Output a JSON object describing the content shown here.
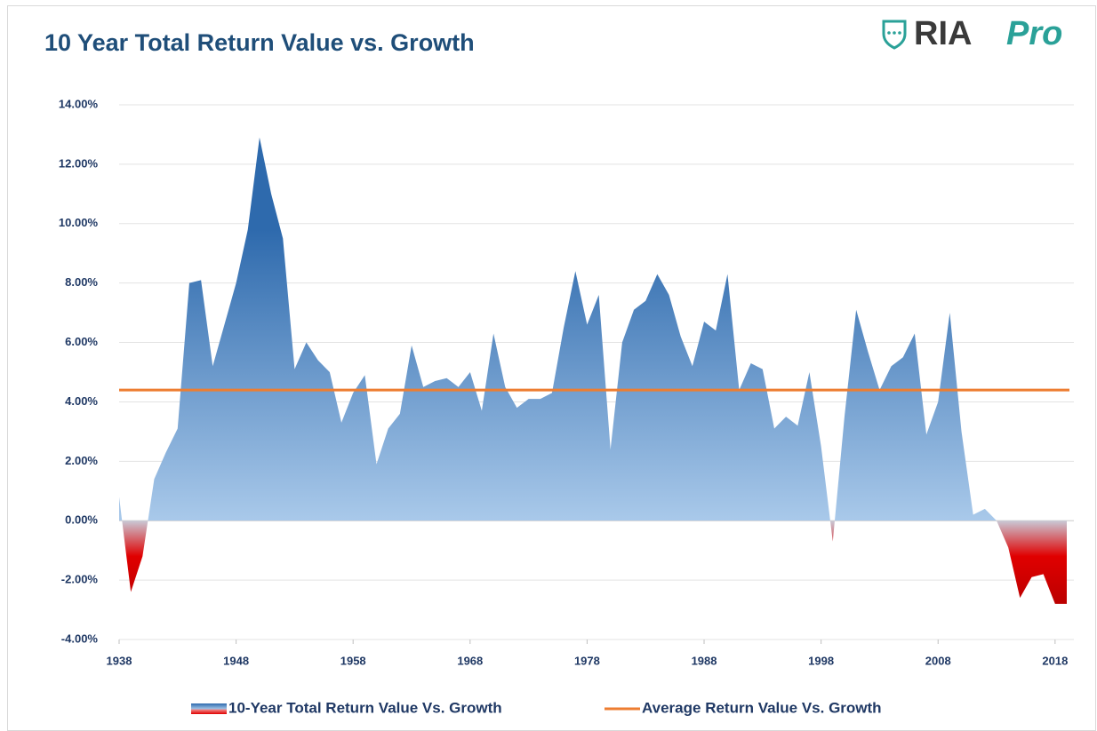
{
  "logo": {
    "text": "RIA",
    "accent": "Pro"
  },
  "chart_data": {
    "type": "area",
    "title": "10 Year Total Return Value vs. Growth",
    "x": [
      1938,
      1939,
      1940,
      1941,
      1942,
      1943,
      1944,
      1945,
      1946,
      1947,
      1948,
      1949,
      1950,
      1951,
      1952,
      1953,
      1954,
      1955,
      1956,
      1957,
      1958,
      1959,
      1960,
      1961,
      1962,
      1963,
      1964,
      1965,
      1966,
      1967,
      1968,
      1969,
      1970,
      1971,
      1972,
      1973,
      1974,
      1975,
      1976,
      1977,
      1978,
      1979,
      1980,
      1981,
      1982,
      1983,
      1984,
      1985,
      1986,
      1987,
      1988,
      1989,
      1990,
      1991,
      1992,
      1993,
      1994,
      1995,
      1996,
      1997,
      1998,
      1999,
      2000,
      2001,
      2002,
      2003,
      2004,
      2005,
      2006,
      2007,
      2008,
      2009,
      2010,
      2011,
      2012,
      2013,
      2014,
      2015,
      2016,
      2017,
      2018,
      2019
    ],
    "series": [
      {
        "name": "10-Year Total Return Value Vs. Growth",
        "color": "#2e6aad",
        "negative_color": "#e00000",
        "values": [
          0.8,
          -2.4,
          -1.2,
          1.4,
          2.3,
          3.1,
          8.0,
          8.1,
          5.2,
          6.6,
          8.0,
          9.8,
          12.9,
          11.0,
          9.5,
          5.1,
          6.0,
          5.4,
          5.0,
          3.3,
          4.3,
          4.9,
          1.9,
          3.1,
          3.6,
          5.9,
          4.5,
          4.7,
          4.8,
          4.5,
          5.0,
          3.7,
          6.3,
          4.5,
          3.8,
          4.1,
          4.1,
          4.3,
          6.5,
          8.4,
          6.6,
          7.6,
          2.4,
          6.0,
          7.1,
          7.4,
          8.3,
          7.6,
          6.2,
          5.2,
          6.7,
          6.4,
          8.3,
          4.4,
          5.3,
          5.1,
          3.1,
          3.5,
          3.2,
          5.0,
          2.5,
          -0.7,
          3.5,
          7.1,
          5.7,
          4.4,
          5.2,
          5.5,
          6.3,
          2.9,
          4.0,
          7.0,
          3.0,
          0.2,
          0.4,
          0.0,
          -0.9,
          -2.6,
          -1.9,
          -1.8,
          -2.8,
          -2.8
        ]
      },
      {
        "name": "Average Return Value Vs. Growth",
        "color": "#ed7d31",
        "type": "line",
        "value": 4.4
      }
    ],
    "xlim": [
      1938,
      2019
    ],
    "xticks": [
      1938,
      1948,
      1958,
      1968,
      1978,
      1988,
      1998,
      2008,
      2018
    ],
    "ylim": [
      -4,
      14
    ],
    "yticks": [
      {
        "value": -4,
        "label": "-4.00%"
      },
      {
        "value": -2,
        "label": "-2.00%"
      },
      {
        "value": 0,
        "label": "0.00%"
      },
      {
        "value": 2,
        "label": "2.00%"
      },
      {
        "value": 4,
        "label": "4.00%"
      },
      {
        "value": 6,
        "label": "6.00%"
      },
      {
        "value": 8,
        "label": "8.00%"
      },
      {
        "value": 10,
        "label": "10.00%"
      },
      {
        "value": 12,
        "label": "12.00%"
      },
      {
        "value": 14,
        "label": "14.00%"
      }
    ],
    "grid": true,
    "legend": "bottom"
  }
}
